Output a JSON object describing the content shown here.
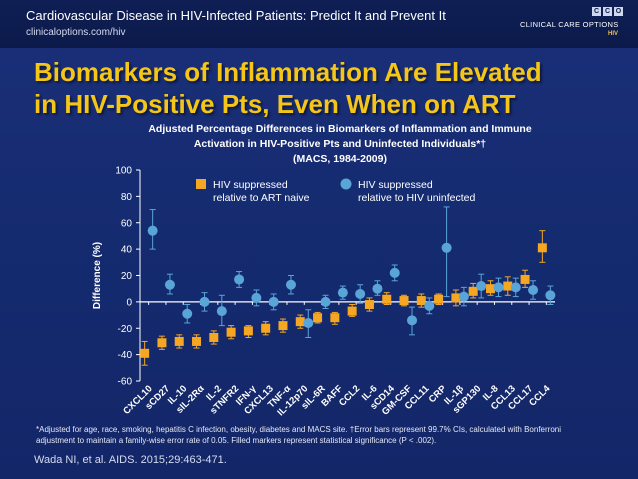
{
  "header": {
    "title": "Cardiovascular Disease in HIV-Infected Patients: Predict It and Prevent It",
    "url": "clinicaloptions.com/hiv",
    "logo_text": "CLINICAL CARE OPTIONS",
    "logo_sub": "HIV",
    "logo_boxes": [
      "C",
      "C",
      "O"
    ]
  },
  "slide_title": {
    "line1": "Biomarkers of Inflammation Are Elevated",
    "line2": "in HIV-Positive Pts, Even When on ART"
  },
  "colors": {
    "accent_title": "#f5c518",
    "series_suppressed_vs_naive": "#f5a623",
    "series_suppressed_vs_uninfected": "#5aa5d8"
  },
  "chart_data": {
    "type": "scatter",
    "title_line1": "Adjusted Percentage Differences in Biomarkers of Inflammation and Immune",
    "title_line2": "Activation in HIV-Positive Pts and Uninfected Individuals*†",
    "title_line3": "(MACS, 1984-2009)",
    "ylabel": "Difference (%)",
    "xlabel": "",
    "ylim": [
      -60,
      100
    ],
    "yticks": [
      100,
      80,
      60,
      40,
      20,
      0,
      -20,
      -40,
      -60
    ],
    "legend_position": "top",
    "categories": [
      "CXCL10",
      "sCD27",
      "IL-10",
      "sIL-2Rα",
      "IL-2",
      "sTNFR2",
      "IFN-γ",
      "CXCL13",
      "TNF-α",
      "IL-12p70",
      "sIL-6R",
      "BAFF",
      "CCL2",
      "IL-6",
      "sCD14",
      "GM-CSF",
      "CCL11",
      "CRP",
      "IL-1β",
      "sGP130",
      "IL-8",
      "CCL13",
      "CCL17",
      "CCL4"
    ],
    "series": [
      {
        "name": "HIV suppressed relative to ART naive",
        "legend_line1": "HIV suppressed",
        "legend_line2": "relative to ART naive",
        "marker": "square",
        "values": [
          -39,
          -31,
          -30,
          -30,
          -27,
          -23,
          -22,
          -20,
          -18,
          -15,
          -12,
          -12,
          -7,
          -2,
          2,
          1,
          1,
          2,
          3,
          8,
          10,
          12,
          17,
          41
        ],
        "lower": [
          -48,
          -36,
          -35,
          -35,
          -32,
          -28,
          -27,
          -25,
          -23,
          -20,
          -16,
          -17,
          -11,
          -7,
          -2,
          -3,
          -4,
          -2,
          -3,
          3,
          5,
          5,
          11,
          30
        ],
        "upper": [
          -30,
          -26,
          -25,
          -25,
          -22,
          -18,
          -18,
          -15,
          -13,
          -10,
          -8,
          -8,
          -2,
          3,
          7,
          5,
          6,
          6,
          9,
          14,
          16,
          19,
          24,
          54
        ]
      },
      {
        "name": "HIV suppressed relative to HIV uninfected",
        "legend_line1": "HIV suppressed",
        "legend_line2": "relative to HIV uninfected",
        "marker": "circle",
        "values": [
          54,
          13,
          -9,
          0,
          -7,
          17,
          3,
          0,
          13,
          -16,
          0,
          7,
          6,
          10,
          22,
          -14,
          -3,
          41,
          4,
          12,
          11,
          11,
          9,
          5
        ],
        "lower": [
          40,
          6,
          -16,
          -7,
          -18,
          11,
          -3,
          -6,
          6,
          -27,
          -5,
          2,
          -1,
          5,
          16,
          -25,
          -9,
          4,
          -3,
          3,
          4,
          4,
          2,
          -2
        ],
        "upper": [
          70,
          21,
          -2,
          7,
          5,
          23,
          9,
          6,
          20,
          -6,
          5,
          12,
          13,
          16,
          28,
          -4,
          3,
          72,
          11,
          21,
          18,
          18,
          16,
          12
        ]
      }
    ]
  },
  "footnote": {
    "line1": "*Adjusted for age, race, smoking, hepatitis C infection, obesity, diabetes and MACS site. †Error bars represent 99.7% CIs, calculated with Bonferroni",
    "line2": "adjustment to maintain a family-wise error rate of 0.05. Filled markers represent statistical significance (P < .002)."
  },
  "citation": "Wada NI, et al. AIDS. 2015;29:463-471."
}
